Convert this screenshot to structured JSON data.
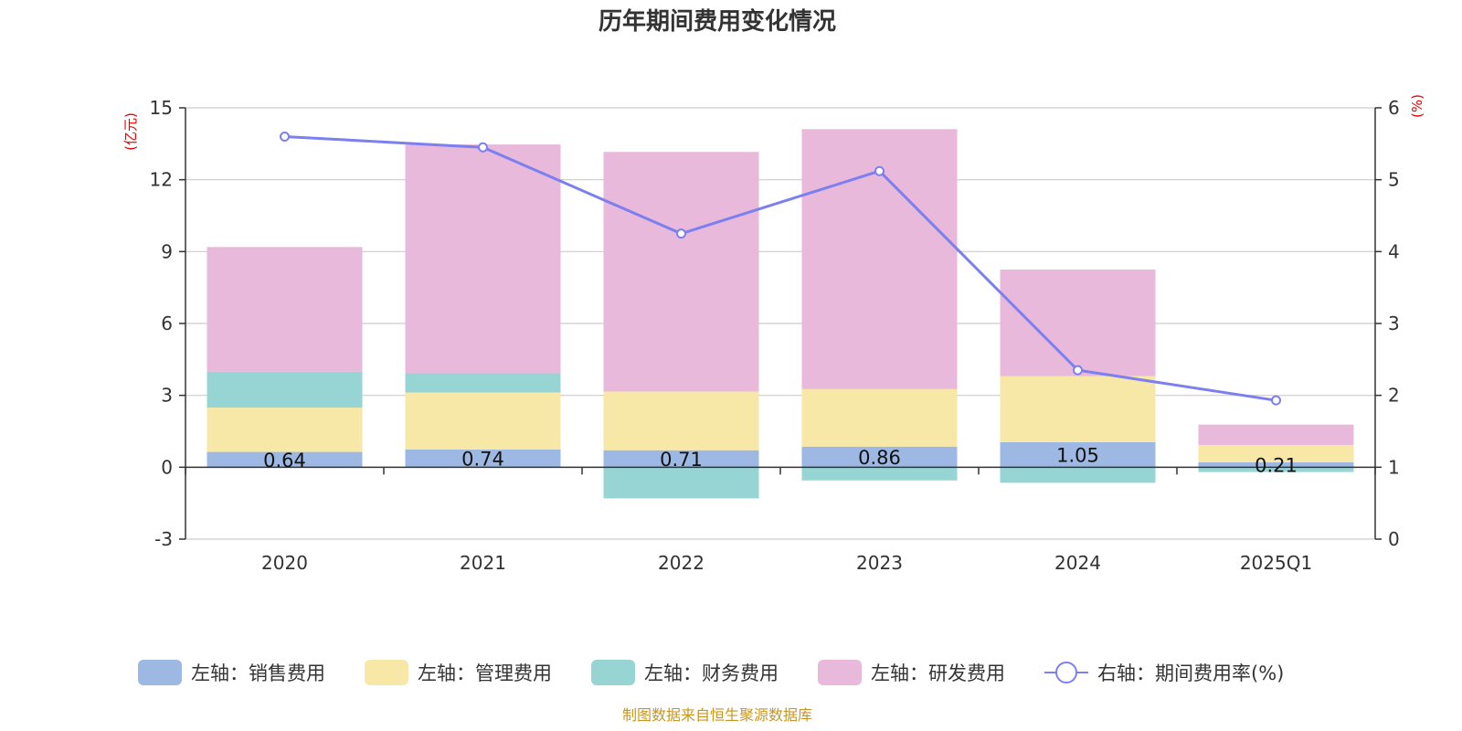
{
  "chart_data": {
    "type": "bar",
    "title": "历年期间费用变化情况",
    "categories": [
      "2020",
      "2021",
      "2022",
      "2023",
      "2024",
      "2025Q1"
    ],
    "left_axis": {
      "unit": "(亿元)",
      "ylim": [
        -3,
        15
      ],
      "ticks": [
        -3,
        0,
        3,
        6,
        9,
        12,
        15
      ]
    },
    "right_axis": {
      "unit": "(%)",
      "ylim": [
        0,
        6
      ],
      "ticks": [
        0,
        1,
        2,
        3,
        4,
        5,
        6
      ]
    },
    "series": [
      {
        "name": "左轴：销售费用",
        "axis": "left",
        "type": "bar",
        "color": "#9db8e3",
        "values": [
          0.64,
          0.74,
          0.71,
          0.86,
          1.05,
          0.21
        ],
        "labels": [
          "0.64",
          "0.74",
          "0.71",
          "0.86",
          "1.05",
          "0.21"
        ]
      },
      {
        "name": "左轴：管理费用",
        "axis": "left",
        "type": "bar",
        "color": "#f7e8a8",
        "values": [
          1.85,
          2.38,
          2.45,
          2.4,
          2.75,
          0.72
        ]
      },
      {
        "name": "左轴：财务费用",
        "axis": "left",
        "type": "bar",
        "color": "#97d4d4",
        "values": [
          1.5,
          0.8,
          -1.3,
          -0.55,
          -0.65,
          -0.2
        ]
      },
      {
        "name": "左轴：研发费用",
        "axis": "left",
        "type": "bar",
        "color": "#e8b9da",
        "values": [
          5.2,
          9.55,
          10.0,
          10.85,
          4.45,
          0.85
        ]
      },
      {
        "name": "右轴：期间费用率(%)",
        "axis": "right",
        "type": "line",
        "color": "#7b7fef",
        "values": [
          5.6,
          5.45,
          4.25,
          5.12,
          2.35,
          1.93
        ]
      }
    ],
    "grid": true,
    "legend_position": "bottom"
  },
  "source_text": "制图数据来自恒生聚源数据库"
}
